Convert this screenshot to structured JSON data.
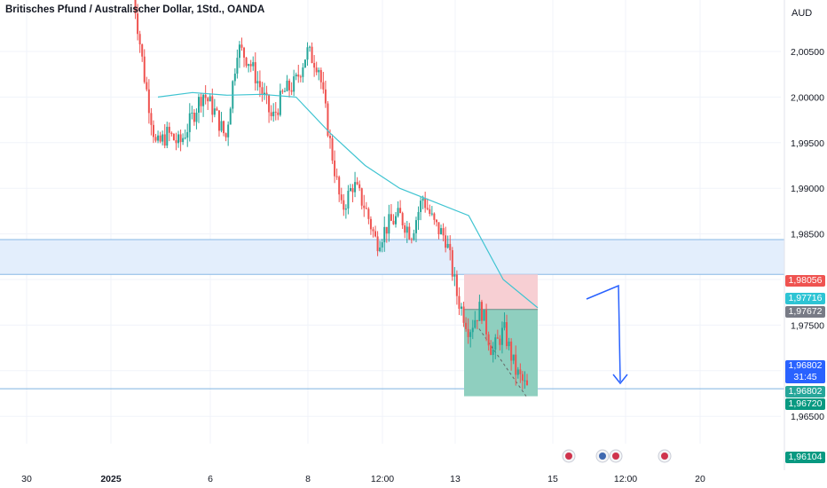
{
  "header": {
    "title": "Britisches Pfund / Australischer Dollar, 1Std., OANDA",
    "currency": "AUD"
  },
  "colors": {
    "up": "#26a69a",
    "down": "#ef5350",
    "ma": "#3fc4d1",
    "zone_fill": "#e3eefc",
    "zone_line": "#87b8e6",
    "support_line": "#7fb3e0",
    "stop_fill": "#f7cfd3",
    "target_fill": "#8fcfbf",
    "arrow": "#2962ff"
  },
  "axis": {
    "y_ticks": [
      "2,00500",
      "2,00000",
      "1,99500",
      "1,99000",
      "1,98500",
      "1,97500",
      "1,96500"
    ],
    "x_ticks": [
      "30",
      "2025",
      "6",
      "8",
      "12:00",
      "13",
      "15",
      "12:00",
      "20"
    ]
  },
  "price_tags": [
    {
      "label": "1,98056",
      "color": "#ef5350"
    },
    {
      "label": "1,97716",
      "color": "#2ec4d4"
    },
    {
      "label": "1,97672",
      "color": "#787b86"
    },
    {
      "label": "1,96802",
      "sub": "31:45",
      "color": "#2962ff"
    },
    {
      "label": "1,96802",
      "color": "#26a69a"
    },
    {
      "label": "1,96720",
      "color": "#089981"
    },
    {
      "label": "1,96104",
      "color": "#089981"
    }
  ],
  "chart_data": {
    "type": "candlestick",
    "title": "Britisches Pfund / Australischer Dollar, 1Std., OANDA",
    "ylabel": "AUD",
    "ylim": [
      1.9592,
      2.0116
    ],
    "close_path": [
      2.0116,
      2.002,
      1.9945,
      1.996,
      1.9948,
      1.9975,
      2.0005,
      1.9985,
      1.9955,
      2.0055,
      2.004,
      2.001,
      1.9975,
      2.0005,
      2.0015,
      2.005,
      2.0035,
      1.995,
      1.9875,
      1.9905,
      1.988,
      1.984,
      1.986,
      1.987,
      1.985,
      1.989,
      1.986,
      1.9845,
      1.978,
      1.9745,
      1.977,
      1.972,
      1.9745,
      1.97,
      1.968
    ],
    "moving_average": [
      2.0,
      2.0005,
      2.0002,
      2.0003,
      2.0,
      1.996,
      1.9925,
      1.99,
      1.9885,
      1.987,
      1.98,
      1.9769
    ],
    "zone": {
      "from": 1.98056,
      "to": 1.98438
    },
    "support_level": 1.96802,
    "position": {
      "stop": 1.98056,
      "entry": 1.97672,
      "target": 1.9672
    },
    "current_price": 1.96802,
    "countdown": "31:45"
  }
}
